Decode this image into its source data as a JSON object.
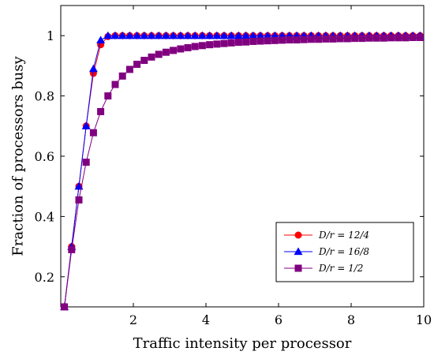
{
  "chart_data": {
    "type": "line",
    "title": "",
    "xlabel": "Traffic intensity per processor",
    "ylabel": "Fraction of processors busy",
    "xlim": [
      0,
      10
    ],
    "ylim": [
      0.1,
      1.1
    ],
    "xticks": [
      2,
      4,
      6,
      8,
      10
    ],
    "yticks": [
      0.2,
      0.4,
      0.6,
      0.8,
      1
    ],
    "xtick_labels": [
      "2",
      "4",
      "6",
      "8",
      "10"
    ],
    "ytick_labels": [
      "0.2",
      "0.4",
      "0.6",
      "0.8",
      "1"
    ],
    "grid": false,
    "legend_position": "bottom-right",
    "series": [
      {
        "name": "D/r = 12/4",
        "color": "#ff0000",
        "marker": "circle",
        "x": [
          0.1,
          0.3,
          0.5,
          0.7,
          0.9,
          1.1,
          1.3,
          1.5,
          1.7,
          1.9,
          2.1,
          2.3,
          2.5,
          2.7,
          2.9,
          3.1,
          3.3,
          3.5,
          3.7,
          3.9,
          4.1,
          4.3,
          4.5,
          4.7,
          4.9,
          5.1,
          5.3,
          5.5,
          5.7,
          5.9,
          6.1,
          6.3,
          6.5,
          6.7,
          6.9,
          7.1,
          7.3,
          7.5,
          7.7,
          7.9,
          8.1,
          8.3,
          8.5,
          8.7,
          8.9,
          9.1,
          9.3,
          9.5,
          9.7,
          9.9
        ],
        "y": [
          0.1,
          0.3,
          0.5,
          0.7,
          0.875,
          0.97,
          0.997,
          1,
          1,
          1,
          1,
          1,
          1,
          1,
          1,
          1,
          1,
          1,
          1,
          1,
          1,
          1,
          1,
          1,
          1,
          1,
          1,
          1,
          1,
          1,
          1,
          1,
          1,
          1,
          1,
          1,
          1,
          1,
          1,
          1,
          1,
          1,
          1,
          1,
          1,
          1,
          1,
          1,
          1,
          1
        ]
      },
      {
        "name": "D/r = 16/8",
        "color": "#0000ff",
        "marker": "triangle",
        "x": [
          0.1,
          0.3,
          0.5,
          0.7,
          0.9,
          1.1,
          1.3,
          1.5,
          1.7,
          1.9,
          2.1,
          2.3,
          2.5,
          2.7,
          2.9,
          3.1,
          3.3,
          3.5,
          3.7,
          3.9,
          4.1,
          4.3,
          4.5,
          4.7,
          4.9,
          5.1,
          5.3,
          5.5,
          5.7,
          5.9,
          6.1,
          6.3,
          6.5,
          6.7,
          6.9,
          7.1,
          7.3,
          7.5,
          7.7,
          7.9,
          8.1,
          8.3,
          8.5,
          8.7,
          8.9,
          9.1,
          9.3,
          9.5,
          9.7,
          9.9
        ],
        "y": [
          0.1,
          0.3,
          0.5,
          0.7,
          0.89,
          0.985,
          1,
          1,
          1,
          1,
          1,
          1,
          1,
          1,
          1,
          1,
          1,
          1,
          1,
          1,
          1,
          1,
          1,
          1,
          1,
          1,
          1,
          1,
          1,
          1,
          1,
          1,
          1,
          1,
          1,
          1,
          1,
          1,
          1,
          1,
          1,
          1,
          1,
          1,
          1,
          1,
          1,
          1,
          1,
          1
        ]
      },
      {
        "name": "D/r = 1/2",
        "color": "#800080",
        "marker": "square",
        "x": [
          0.1,
          0.3,
          0.5,
          0.7,
          0.9,
          1.1,
          1.3,
          1.5,
          1.7,
          1.9,
          2.1,
          2.3,
          2.5,
          2.7,
          2.9,
          3.1,
          3.3,
          3.5,
          3.7,
          3.9,
          4.1,
          4.3,
          4.5,
          4.7,
          4.9,
          5.1,
          5.3,
          5.5,
          5.7,
          5.9,
          6.1,
          6.3,
          6.5,
          6.7,
          6.9,
          7.1,
          7.3,
          7.5,
          7.7,
          7.9,
          8.1,
          8.3,
          8.5,
          8.7,
          8.9,
          9.1,
          9.3,
          9.5,
          9.7,
          9.9
        ],
        "y": [
          0.1,
          0.29,
          0.455,
          0.58,
          0.678,
          0.748,
          0.8,
          0.838,
          0.866,
          0.888,
          0.905,
          0.918,
          0.929,
          0.938,
          0.945,
          0.951,
          0.956,
          0.96,
          0.964,
          0.967,
          0.97,
          0.972,
          0.974,
          0.976,
          0.978,
          0.979,
          0.981,
          0.982,
          0.983,
          0.984,
          0.985,
          0.986,
          0.986,
          0.987,
          0.988,
          0.988,
          0.989,
          0.989,
          0.99,
          0.99,
          0.991,
          0.991,
          0.992,
          0.992,
          0.992,
          0.993,
          0.993,
          0.993,
          0.994,
          0.994
        ]
      }
    ]
  }
}
